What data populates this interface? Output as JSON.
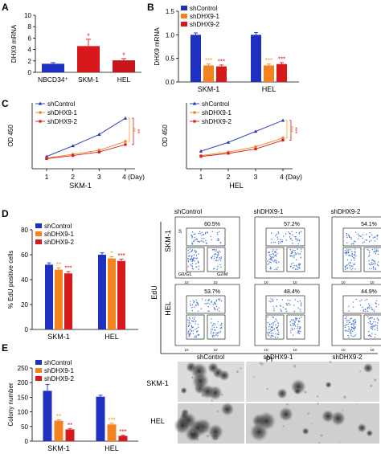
{
  "colors": {
    "blue": "#1f2fbf",
    "orange": "#f58220",
    "red": "#d7191c",
    "dark_red": "#c8151b",
    "sig_orange": "#f5a020",
    "sig_red": "#d7191c",
    "flow_dots": "#3d6fd6"
  },
  "panel_letters": [
    "A",
    "B",
    "C",
    "D",
    "E"
  ],
  "chart_data": [
    {
      "id": "A",
      "type": "bar",
      "ylabel": "DHX9 mRNA",
      "categories": [
        "NBCD34⁺",
        "SKM-1",
        "HEL"
      ],
      "values": [
        1.5,
        4.6,
        2.1
      ],
      "errors": [
        0.2,
        1.2,
        0.3
      ],
      "colors": [
        "blue",
        "red",
        "dark_red"
      ],
      "significance": [
        "",
        "*",
        "*"
      ],
      "ylim": [
        0,
        10
      ],
      "yticks": [
        "0",
        "2",
        "4",
        "6",
        "8",
        "10"
      ]
    },
    {
      "id": "B",
      "type": "bar",
      "ylabel": "DHX9 mRNA",
      "categories": [
        "SKM-1",
        "HEL"
      ],
      "series": [
        {
          "name": "shControl",
          "color": "blue",
          "values": [
            1.0,
            1.0
          ],
          "errors": [
            0.04,
            0.05
          ],
          "significance": [
            "",
            ""
          ]
        },
        {
          "name": "shDHX9-1",
          "color": "orange",
          "values": [
            0.35,
            0.35
          ],
          "errors": [
            0.03,
            0.03
          ],
          "significance": [
            "***",
            "***"
          ]
        },
        {
          "name": "shDHX9-2",
          "color": "red",
          "values": [
            0.33,
            0.38
          ],
          "errors": [
            0.03,
            0.03
          ],
          "significance": [
            "***",
            "***"
          ]
        }
      ],
      "ylim": [
        0,
        1.5
      ],
      "yticks": [
        "0.0",
        "0.5",
        "1.0",
        "1.5"
      ]
    },
    {
      "id": "C1",
      "type": "line",
      "xlabel": "SKM-1",
      "ylabel": "OD 450",
      "x": [
        1,
        2,
        3,
        4
      ],
      "xticks": [
        "1",
        "2",
        "3",
        "4 (Day)"
      ],
      "series": [
        {
          "name": "shControl",
          "color": "blue",
          "values": [
            0.28,
            0.52,
            0.78,
            1.15
          ]
        },
        {
          "name": "shDHX9-1",
          "color": "orange",
          "values": [
            0.24,
            0.33,
            0.42,
            0.62
          ]
        },
        {
          "name": "shDHX9-2",
          "color": "red",
          "values": [
            0.23,
            0.3,
            0.38,
            0.55
          ]
        }
      ],
      "ylim": [
        0,
        1.5
      ],
      "significance": [
        "**",
        "**"
      ]
    },
    {
      "id": "C2",
      "type": "line",
      "xlabel": "HEL",
      "ylabel": "OD 450",
      "x": [
        1,
        2,
        3,
        4
      ],
      "xticks": [
        "1",
        "2",
        "3",
        "4 (Day)"
      ],
      "series": [
        {
          "name": "shControl",
          "color": "blue",
          "values": [
            0.4,
            0.6,
            0.85,
            1.1
          ]
        },
        {
          "name": "shDHX9-1",
          "color": "orange",
          "values": [
            0.3,
            0.38,
            0.5,
            0.7
          ]
        },
        {
          "name": "shDHX9-2",
          "color": "red",
          "values": [
            0.28,
            0.35,
            0.45,
            0.65
          ]
        }
      ],
      "ylim": [
        0,
        1.5
      ],
      "significance": [
        "***",
        "***"
      ]
    },
    {
      "id": "D",
      "type": "bar",
      "ylabel": "% EdU positive cells",
      "categories": [
        "SKM-1",
        "HEL"
      ],
      "series": [
        {
          "name": "shControl",
          "color": "blue",
          "values": [
            52,
            60
          ],
          "errors": [
            1.5,
            1.5
          ],
          "significance": [
            "",
            ""
          ]
        },
        {
          "name": "shDHX9-1",
          "color": "orange",
          "values": [
            48,
            57
          ],
          "errors": [
            1.5,
            1.5
          ],
          "significance": [
            "**",
            "*"
          ]
        },
        {
          "name": "shDHX9-2",
          "color": "red",
          "values": [
            45,
            55
          ],
          "errors": [
            1.5,
            1.5
          ],
          "significance": [
            "***",
            "***"
          ]
        }
      ],
      "ylim": [
        0,
        80
      ],
      "yticks": [
        "0",
        "20",
        "40",
        "60",
        "80"
      ]
    },
    {
      "id": "E",
      "type": "bar",
      "ylabel": "Colony number",
      "categories": [
        "SKM-1",
        "HEL"
      ],
      "series": [
        {
          "name": "shControl",
          "color": "blue",
          "values": [
            172,
            152
          ],
          "errors": [
            22,
            5
          ],
          "significance": [
            "",
            ""
          ]
        },
        {
          "name": "shDHX9-1",
          "color": "orange",
          "values": [
            70,
            57
          ],
          "errors": [
            3,
            4
          ],
          "significance": [
            "**",
            "***"
          ]
        },
        {
          "name": "shDHX9-2",
          "color": "red",
          "values": [
            40,
            18
          ],
          "errors": [
            3,
            2
          ],
          "significance": [
            "**",
            "***"
          ]
        }
      ],
      "ylim": [
        0,
        250
      ],
      "yticks": [
        "0",
        "50",
        "100",
        "150",
        "200",
        "250"
      ]
    }
  ],
  "flow": {
    "ylabel": "EdU",
    "xlabel": "PI",
    "columns": [
      "shControl",
      "shDHX9-1",
      "shDHX9-2"
    ],
    "rows": [
      "SKM-1",
      "HEL"
    ],
    "percents": [
      [
        "60.5%",
        "57.2%",
        "54.1%"
      ],
      [
        "53.7%",
        "48.4%",
        "44.9%"
      ]
    ],
    "gate_labels": {
      "s": "S",
      "g0g1": "G0/G1",
      "g2m": "G2/M"
    },
    "tick_10": "10"
  },
  "colony": {
    "columns": [
      "shControl",
      "shDHX9-1",
      "shDHX9-2"
    ],
    "rows": [
      "SKM-1",
      "HEL"
    ]
  }
}
